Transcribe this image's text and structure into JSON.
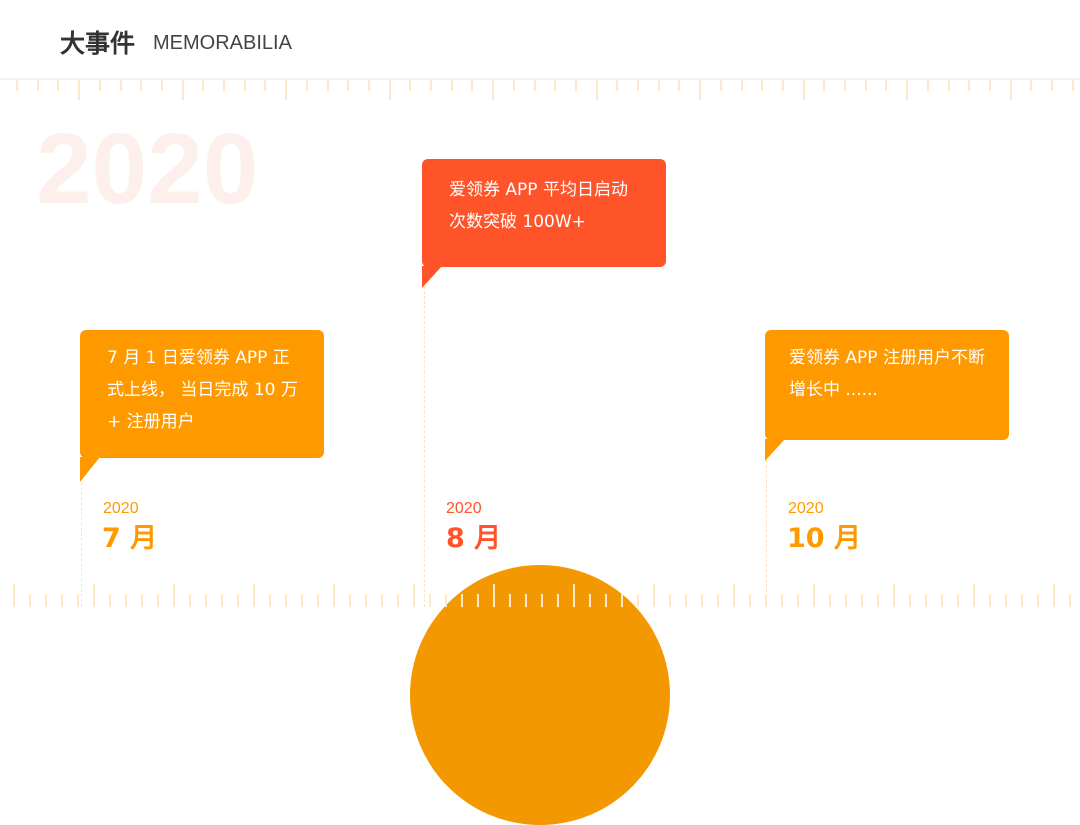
{
  "header": {
    "title": "大事件",
    "subtitle": "MEMORABILIA"
  },
  "watermark_year": "2020",
  "colors": {
    "orange": "#FF9900",
    "red": "#FF5329",
    "ruler": "#FDE8C8",
    "sun": "#F39800"
  },
  "events": [
    {
      "year": "2020",
      "month": "7 月",
      "text": "7 月 1 日爱领券 APP 正式上线， 当日完成 10 万 + 注册用户",
      "color": "orange"
    },
    {
      "year": "2020",
      "month": "8 月",
      "text": "爱领券 APP 平均日启动次数突破 100W+",
      "color": "red"
    },
    {
      "year": "2020",
      "month": "10 月",
      "text": "爱领券 APP 注册用户不断增长中 ......",
      "color": "orange"
    }
  ]
}
